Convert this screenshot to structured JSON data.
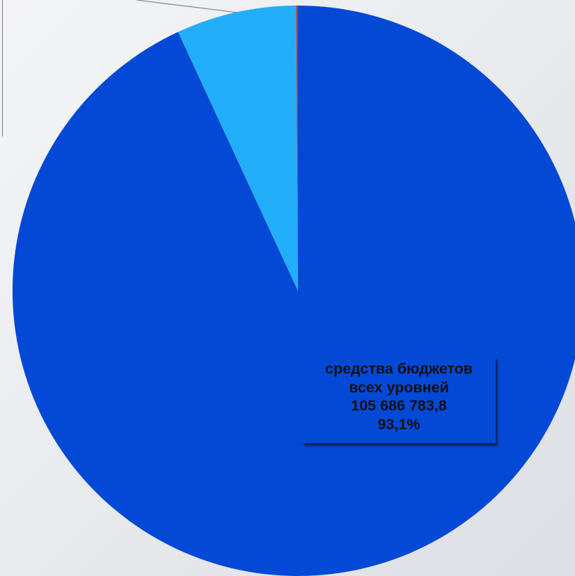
{
  "chart_data": {
    "type": "pie",
    "title": "",
    "start_angle_deg": 0,
    "direction": "clockwise",
    "slices": [
      {
        "name": "средства бюджетов всех уровней",
        "value": 105686783.8,
        "percent": 93.1,
        "color": "#0449d6"
      },
      {
        "name": "",
        "percent": 6.8,
        "color": "#23aef9"
      },
      {
        "name": "",
        "percent": 0.1,
        "color": "#c0392b"
      }
    ],
    "labels": [
      {
        "slice": 0,
        "lines": [
          "средства бюджетов",
          "всех уровней",
          "105 686 783,8",
          "93,1%"
        ]
      }
    ]
  }
}
